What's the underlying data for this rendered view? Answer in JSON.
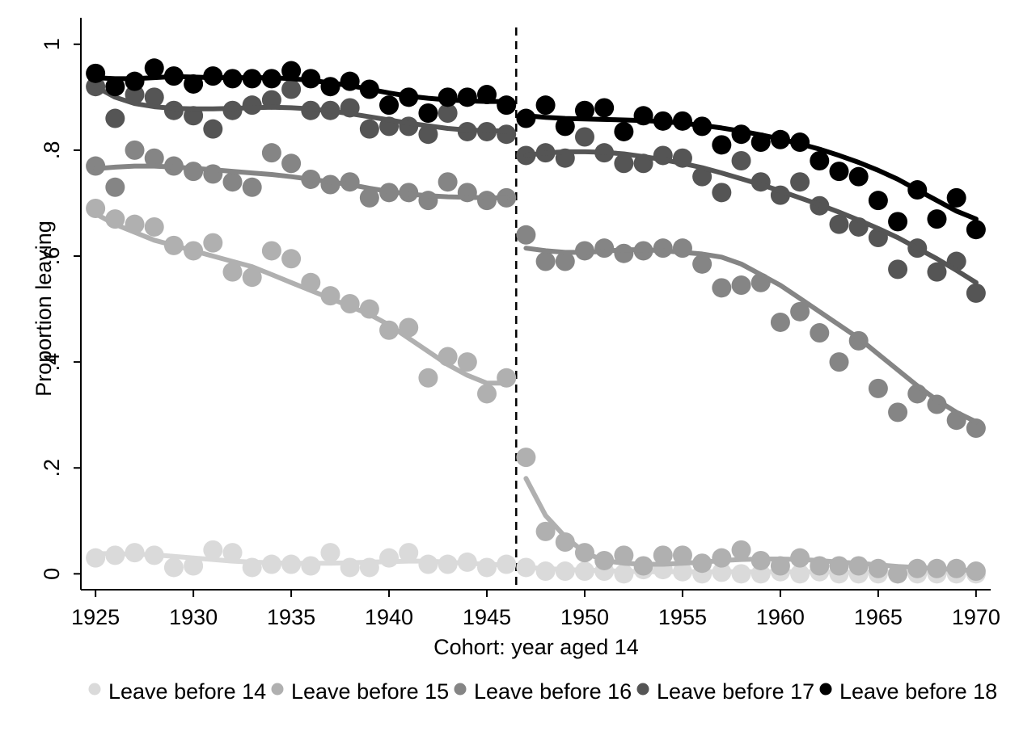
{
  "chart_data": {
    "type": "scatter",
    "xlabel": "Cohort: year aged 14",
    "ylabel": "Proportion leaving",
    "xlim": [
      1924.25,
      1970.75
    ],
    "ylim": [
      -0.03,
      1.05
    ],
    "x_ticks": [
      {
        "value": 1925,
        "label": "1925"
      },
      {
        "value": 1930,
        "label": "1930"
      },
      {
        "value": 1935,
        "label": "1935"
      },
      {
        "value": 1940,
        "label": "1940"
      },
      {
        "value": 1945,
        "label": "1945"
      },
      {
        "value": 1950,
        "label": "1950"
      },
      {
        "value": 1955,
        "label": "1955"
      },
      {
        "value": 1960,
        "label": "1960"
      },
      {
        "value": 1965,
        "label": "1965"
      },
      {
        "value": 1970,
        "label": "1970"
      }
    ],
    "y_ticks": [
      {
        "value": 0,
        "label": "0"
      },
      {
        "value": 0.2,
        "label": ".2"
      },
      {
        "value": 0.4,
        "label": ".4"
      },
      {
        "value": 0.6,
        "label": ".6"
      },
      {
        "value": 0.8,
        "label": ".8"
      },
      {
        "value": 1,
        "label": "1"
      }
    ],
    "cutoff_x": 1946.5,
    "cutoff_style": "dashed vertical line",
    "grid": false,
    "legend_position": "bottom",
    "x": [
      1925,
      1926,
      1927,
      1928,
      1929,
      1930,
      1931,
      1932,
      1933,
      1934,
      1935,
      1936,
      1937,
      1938,
      1939,
      1940,
      1941,
      1942,
      1943,
      1944,
      1945,
      1946,
      1947,
      1948,
      1949,
      1950,
      1951,
      1952,
      1953,
      1954,
      1955,
      1956,
      1957,
      1958,
      1959,
      1960,
      1961,
      1962,
      1963,
      1964,
      1965,
      1966,
      1967,
      1968,
      1969,
      1970
    ],
    "series": [
      {
        "name": "Leave before 14",
        "color": "#dadada",
        "values": [
          0.03,
          0.035,
          0.04,
          0.035,
          0.012,
          0.015,
          0.045,
          0.04,
          0.012,
          0.018,
          0.018,
          0.015,
          0.04,
          0.012,
          0.012,
          0.03,
          0.04,
          0.018,
          0.018,
          0.022,
          0.012,
          0.018,
          0.012,
          0.005,
          0.005,
          0.005,
          0.005,
          0.0,
          0.008,
          0.008,
          0.004,
          0.0,
          0.003,
          0.0,
          0.0,
          0.004,
          0.0,
          0.004,
          0.0,
          0.0,
          0.0,
          0.0,
          0.0,
          0.0,
          0.0,
          0.0
        ],
        "fit_pre": [
          0.038,
          0.038,
          0.037,
          0.036,
          0.033,
          0.03,
          0.027,
          0.024,
          0.022,
          0.021,
          0.02,
          0.02,
          0.02,
          0.021,
          0.022,
          0.023,
          0.024,
          0.024,
          0.022,
          0.02,
          0.018,
          0.017
        ],
        "fit_post": [
          0.012,
          0.01,
          0.008,
          0.007,
          0.006,
          0.005,
          0.004,
          0.004,
          0.004,
          0.004,
          0.004,
          0.004,
          0.004,
          0.004,
          0.004,
          0.004,
          0.003,
          0.003,
          0.003,
          0.003,
          0.003,
          0.003,
          0.003,
          0.003
        ]
      },
      {
        "name": "Leave before 15",
        "color": "#b0b0b0",
        "values": [
          0.69,
          0.67,
          0.66,
          0.655,
          0.62,
          0.61,
          0.625,
          0.57,
          0.56,
          0.61,
          0.595,
          0.55,
          0.525,
          0.51,
          0.5,
          0.46,
          0.465,
          0.37,
          0.41,
          0.4,
          0.34,
          0.37,
          0.22,
          0.08,
          0.06,
          0.04,
          0.025,
          0.035,
          0.015,
          0.035,
          0.035,
          0.02,
          0.03,
          0.045,
          0.025,
          0.015,
          0.03,
          0.015,
          0.015,
          0.015,
          0.01,
          0.0,
          0.01,
          0.01,
          0.01,
          0.005
        ],
        "fit_pre": [
          0.68,
          0.66,
          0.645,
          0.63,
          0.62,
          0.61,
          0.6,
          0.59,
          0.58,
          0.565,
          0.55,
          0.535,
          0.52,
          0.505,
          0.49,
          0.47,
          0.445,
          0.42,
          0.395,
          0.375,
          0.36,
          0.36
        ],
        "fit_post": [
          0.18,
          0.11,
          0.07,
          0.04,
          0.025,
          0.02,
          0.018,
          0.018,
          0.02,
          0.022,
          0.025,
          0.027,
          0.028,
          0.028,
          0.027,
          0.025,
          0.022,
          0.02,
          0.017,
          0.014,
          0.012,
          0.01,
          0.008,
          0.006
        ]
      },
      {
        "name": "Leave before 16",
        "color": "#858585",
        "values": [
          0.77,
          0.73,
          0.8,
          0.785,
          0.77,
          0.76,
          0.755,
          0.74,
          0.73,
          0.795,
          0.775,
          0.745,
          0.735,
          0.74,
          0.71,
          0.72,
          0.72,
          0.705,
          0.74,
          0.72,
          0.705,
          0.71,
          0.64,
          0.59,
          0.59,
          0.61,
          0.615,
          0.605,
          0.61,
          0.615,
          0.615,
          0.585,
          0.54,
          0.545,
          0.55,
          0.475,
          0.495,
          0.455,
          0.4,
          0.44,
          0.35,
          0.305,
          0.34,
          0.32,
          0.29,
          0.275
        ],
        "fit_pre": [
          0.765,
          0.768,
          0.77,
          0.77,
          0.768,
          0.766,
          0.763,
          0.76,
          0.757,
          0.754,
          0.75,
          0.745,
          0.74,
          0.735,
          0.728,
          0.722,
          0.717,
          0.714,
          0.712,
          0.711,
          0.71,
          0.71
        ],
        "fit_post": [
          0.615,
          0.61,
          0.607,
          0.607,
          0.609,
          0.612,
          0.612,
          0.61,
          0.607,
          0.604,
          0.598,
          0.585,
          0.565,
          0.545,
          0.52,
          0.495,
          0.47,
          0.445,
          0.415,
          0.385,
          0.355,
          0.328,
          0.305,
          0.287
        ]
      },
      {
        "name": "Leave before 17",
        "color": "#555555",
        "values": [
          0.92,
          0.86,
          0.905,
          0.9,
          0.875,
          0.865,
          0.84,
          0.875,
          0.885,
          0.895,
          0.915,
          0.875,
          0.875,
          0.88,
          0.84,
          0.845,
          0.845,
          0.83,
          0.87,
          0.835,
          0.835,
          0.83,
          0.79,
          0.795,
          0.785,
          0.825,
          0.795,
          0.775,
          0.775,
          0.79,
          0.785,
          0.75,
          0.72,
          0.78,
          0.74,
          0.715,
          0.74,
          0.695,
          0.66,
          0.655,
          0.635,
          0.575,
          0.615,
          0.57,
          0.59,
          0.53
        ],
        "fit_pre": [
          0.92,
          0.9,
          0.888,
          0.882,
          0.879,
          0.878,
          0.878,
          0.879,
          0.88,
          0.881,
          0.88,
          0.878,
          0.874,
          0.869,
          0.863,
          0.857,
          0.851,
          0.846,
          0.841,
          0.838,
          0.837,
          0.836
        ],
        "fit_post": [
          0.79,
          0.795,
          0.797,
          0.797,
          0.796,
          0.793,
          0.788,
          0.782,
          0.775,
          0.767,
          0.757,
          0.746,
          0.735,
          0.723,
          0.71,
          0.697,
          0.683,
          0.668,
          0.652,
          0.635,
          0.615,
          0.595,
          0.573,
          0.55
        ]
      },
      {
        "name": "Leave before 18",
        "color": "#000000",
        "values": [
          0.945,
          0.92,
          0.93,
          0.955,
          0.94,
          0.925,
          0.94,
          0.935,
          0.935,
          0.935,
          0.95,
          0.935,
          0.92,
          0.93,
          0.915,
          0.885,
          0.9,
          0.87,
          0.9,
          0.9,
          0.905,
          0.885,
          0.86,
          0.885,
          0.845,
          0.875,
          0.88,
          0.835,
          0.865,
          0.855,
          0.855,
          0.845,
          0.81,
          0.83,
          0.815,
          0.82,
          0.815,
          0.78,
          0.76,
          0.75,
          0.705,
          0.665,
          0.725,
          0.67,
          0.71,
          0.65
        ],
        "fit_pre": [
          0.937,
          0.935,
          0.935,
          0.937,
          0.939,
          0.938,
          0.937,
          0.937,
          0.937,
          0.937,
          0.935,
          0.932,
          0.927,
          0.922,
          0.915,
          0.908,
          0.902,
          0.898,
          0.895,
          0.893,
          0.892,
          0.892
        ],
        "fit_post": [
          0.865,
          0.862,
          0.86,
          0.859,
          0.858,
          0.857,
          0.856,
          0.854,
          0.851,
          0.847,
          0.842,
          0.836,
          0.829,
          0.821,
          0.812,
          0.802,
          0.79,
          0.777,
          0.762,
          0.745,
          0.725,
          0.705,
          0.685,
          0.67
        ]
      }
    ]
  }
}
